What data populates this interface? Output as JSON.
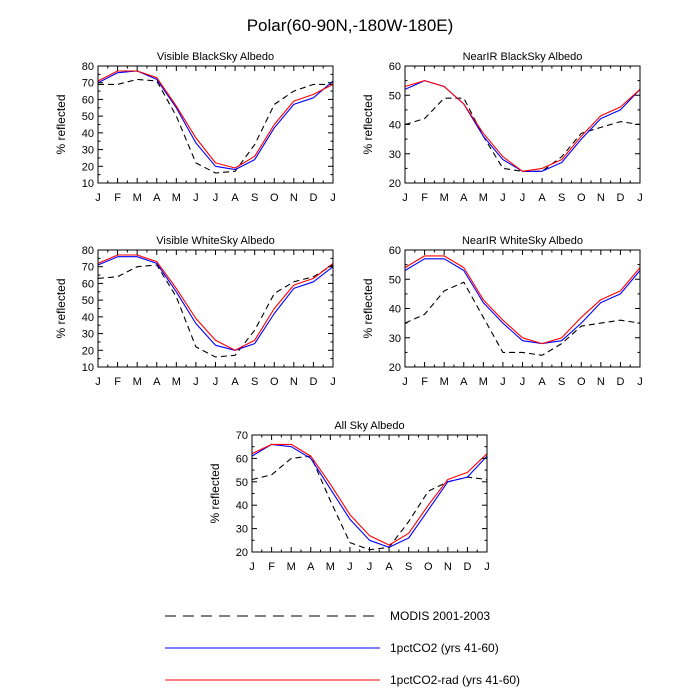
{
  "figure": {
    "title": "Polar(60-90N,-180W-180E)"
  },
  "legend": {
    "placement": "bottom-center",
    "entries": [
      {
        "label": "MODIS 2001-2003",
        "color": "#000000",
        "dash": "dashed"
      },
      {
        "label": "1pctCO2 (yrs 41-60)",
        "color": "#0000ff",
        "dash": "solid"
      },
      {
        "label": "1pctCO2-rad (yrs 41-60)",
        "color": "#ff0000",
        "dash": "solid"
      }
    ]
  },
  "chart_data": [
    {
      "type": "line",
      "title": "Visible BlackSky Albedo",
      "ylabel": "% reflected",
      "xlabel": "",
      "categories": [
        "J",
        "F",
        "M",
        "A",
        "M",
        "J",
        "J",
        "A",
        "S",
        "O",
        "N",
        "D",
        "J"
      ],
      "ylim": [
        10,
        80
      ],
      "yticks": [
        10,
        20,
        30,
        40,
        50,
        60,
        70,
        80
      ],
      "grid": false,
      "series": [
        {
          "name": "MODIS 2001-2003",
          "color": "#000000",
          "dash": true,
          "values": [
            69,
            69,
            72,
            71,
            50,
            22,
            16,
            17,
            33,
            57,
            65,
            69,
            69
          ]
        },
        {
          "name": "1pctCO2 (yrs 41-60)",
          "color": "#0000ff",
          "dash": false,
          "values": [
            70,
            76,
            77,
            72,
            55,
            34,
            20,
            18,
            24,
            43,
            57,
            61,
            71
          ]
        },
        {
          "name": "1pctCO2-rad (yrs 41-60)",
          "color": "#ff0000",
          "dash": false,
          "values": [
            71,
            77,
            77,
            73,
            56,
            37,
            22,
            19,
            26,
            45,
            59,
            63,
            69
          ]
        }
      ]
    },
    {
      "type": "line",
      "title": "NearIR BlackSky Albedo",
      "ylabel": "% reflected",
      "xlabel": "",
      "categories": [
        "J",
        "F",
        "M",
        "A",
        "M",
        "J",
        "J",
        "A",
        "S",
        "O",
        "N",
        "D",
        "J"
      ],
      "ylim": [
        20,
        60
      ],
      "yticks": [
        20,
        30,
        40,
        50,
        60
      ],
      "grid": false,
      "series": [
        {
          "name": "MODIS 2001-2003",
          "color": "#000000",
          "dash": true,
          "values": [
            40,
            42,
            49,
            49,
            36,
            25,
            24,
            24,
            29,
            37,
            39,
            41,
            40
          ]
        },
        {
          "name": "1pctCO2 (yrs 41-60)",
          "color": "#0000ff",
          "dash": false,
          "values": [
            52,
            55,
            53,
            47,
            36,
            28,
            24,
            24,
            27,
            35,
            42,
            45,
            52
          ]
        },
        {
          "name": "1pctCO2-rad (yrs 41-60)",
          "color": "#ff0000",
          "dash": false,
          "values": [
            53,
            55,
            53,
            47,
            37,
            29,
            24,
            25,
            28,
            36,
            43,
            46,
            52
          ]
        }
      ]
    },
    {
      "type": "line",
      "title": "Visible WhiteSky Albedo",
      "ylabel": "% reflected",
      "xlabel": "",
      "categories": [
        "J",
        "F",
        "M",
        "A",
        "M",
        "J",
        "J",
        "A",
        "S",
        "O",
        "N",
        "D",
        "J"
      ],
      "ylim": [
        10,
        80
      ],
      "yticks": [
        10,
        20,
        30,
        40,
        50,
        60,
        70,
        80
      ],
      "grid": false,
      "series": [
        {
          "name": "MODIS 2001-2003",
          "color": "#000000",
          "dash": true,
          "values": [
            63,
            64,
            70,
            71,
            52,
            22,
            16,
            17,
            32,
            54,
            61,
            64,
            71
          ]
        },
        {
          "name": "1pctCO2 (yrs 41-60)",
          "color": "#0000ff",
          "dash": false,
          "values": [
            71,
            76,
            76,
            72,
            55,
            36,
            23,
            20,
            24,
            42,
            57,
            61,
            70
          ]
        },
        {
          "name": "1pctCO2-rad (yrs 41-60)",
          "color": "#ff0000",
          "dash": false,
          "values": [
            72,
            77,
            77,
            73,
            57,
            39,
            26,
            20,
            26,
            45,
            59,
            63,
            72
          ]
        }
      ]
    },
    {
      "type": "line",
      "title": "NearIR WhiteSky Albedo",
      "ylabel": "% reflected",
      "xlabel": "",
      "categories": [
        "J",
        "F",
        "M",
        "A",
        "M",
        "J",
        "J",
        "A",
        "S",
        "O",
        "N",
        "D",
        "J"
      ],
      "ylim": [
        20,
        60
      ],
      "yticks": [
        20,
        30,
        40,
        50,
        60
      ],
      "grid": false,
      "series": [
        {
          "name": "MODIS 2001-2003",
          "color": "#000000",
          "dash": true,
          "values": [
            35,
            38,
            46,
            49,
            37,
            25,
            25,
            24,
            28,
            34,
            35,
            36,
            35
          ]
        },
        {
          "name": "1pctCO2 (yrs 41-60)",
          "color": "#0000ff",
          "dash": false,
          "values": [
            53,
            57,
            57,
            53,
            42,
            35,
            29,
            28,
            29,
            35,
            42,
            45,
            53
          ]
        },
        {
          "name": "1pctCO2-rad (yrs 41-60)",
          "color": "#ff0000",
          "dash": false,
          "values": [
            54,
            58,
            58,
            54,
            43,
            36,
            30,
            28,
            30,
            37,
            43,
            46,
            54
          ]
        }
      ]
    },
    {
      "type": "line",
      "title": "All Sky Albedo",
      "ylabel": "% reflected",
      "xlabel": "",
      "categories": [
        "J",
        "F",
        "M",
        "A",
        "M",
        "J",
        "J",
        "A",
        "S",
        "O",
        "N",
        "D",
        "J"
      ],
      "ylim": [
        20,
        70
      ],
      "yticks": [
        20,
        30,
        40,
        50,
        60,
        70
      ],
      "grid": false,
      "series": [
        {
          "name": "MODIS 2001-2003",
          "color": "#000000",
          "dash": true,
          "values": [
            51,
            53,
            60,
            61,
            42,
            24,
            21,
            22,
            33,
            46,
            50,
            52,
            51
          ]
        },
        {
          "name": "1pctCO2 (yrs 41-60)",
          "color": "#0000ff",
          "dash": false,
          "values": [
            61,
            66,
            65,
            60,
            47,
            34,
            25,
            22,
            26,
            38,
            50,
            52,
            61
          ]
        },
        {
          "name": "1pctCO2-rad (yrs 41-60)",
          "color": "#ff0000",
          "dash": false,
          "values": [
            62,
            66,
            66,
            61,
            49,
            36,
            27,
            23,
            28,
            40,
            51,
            54,
            62
          ]
        }
      ]
    }
  ]
}
